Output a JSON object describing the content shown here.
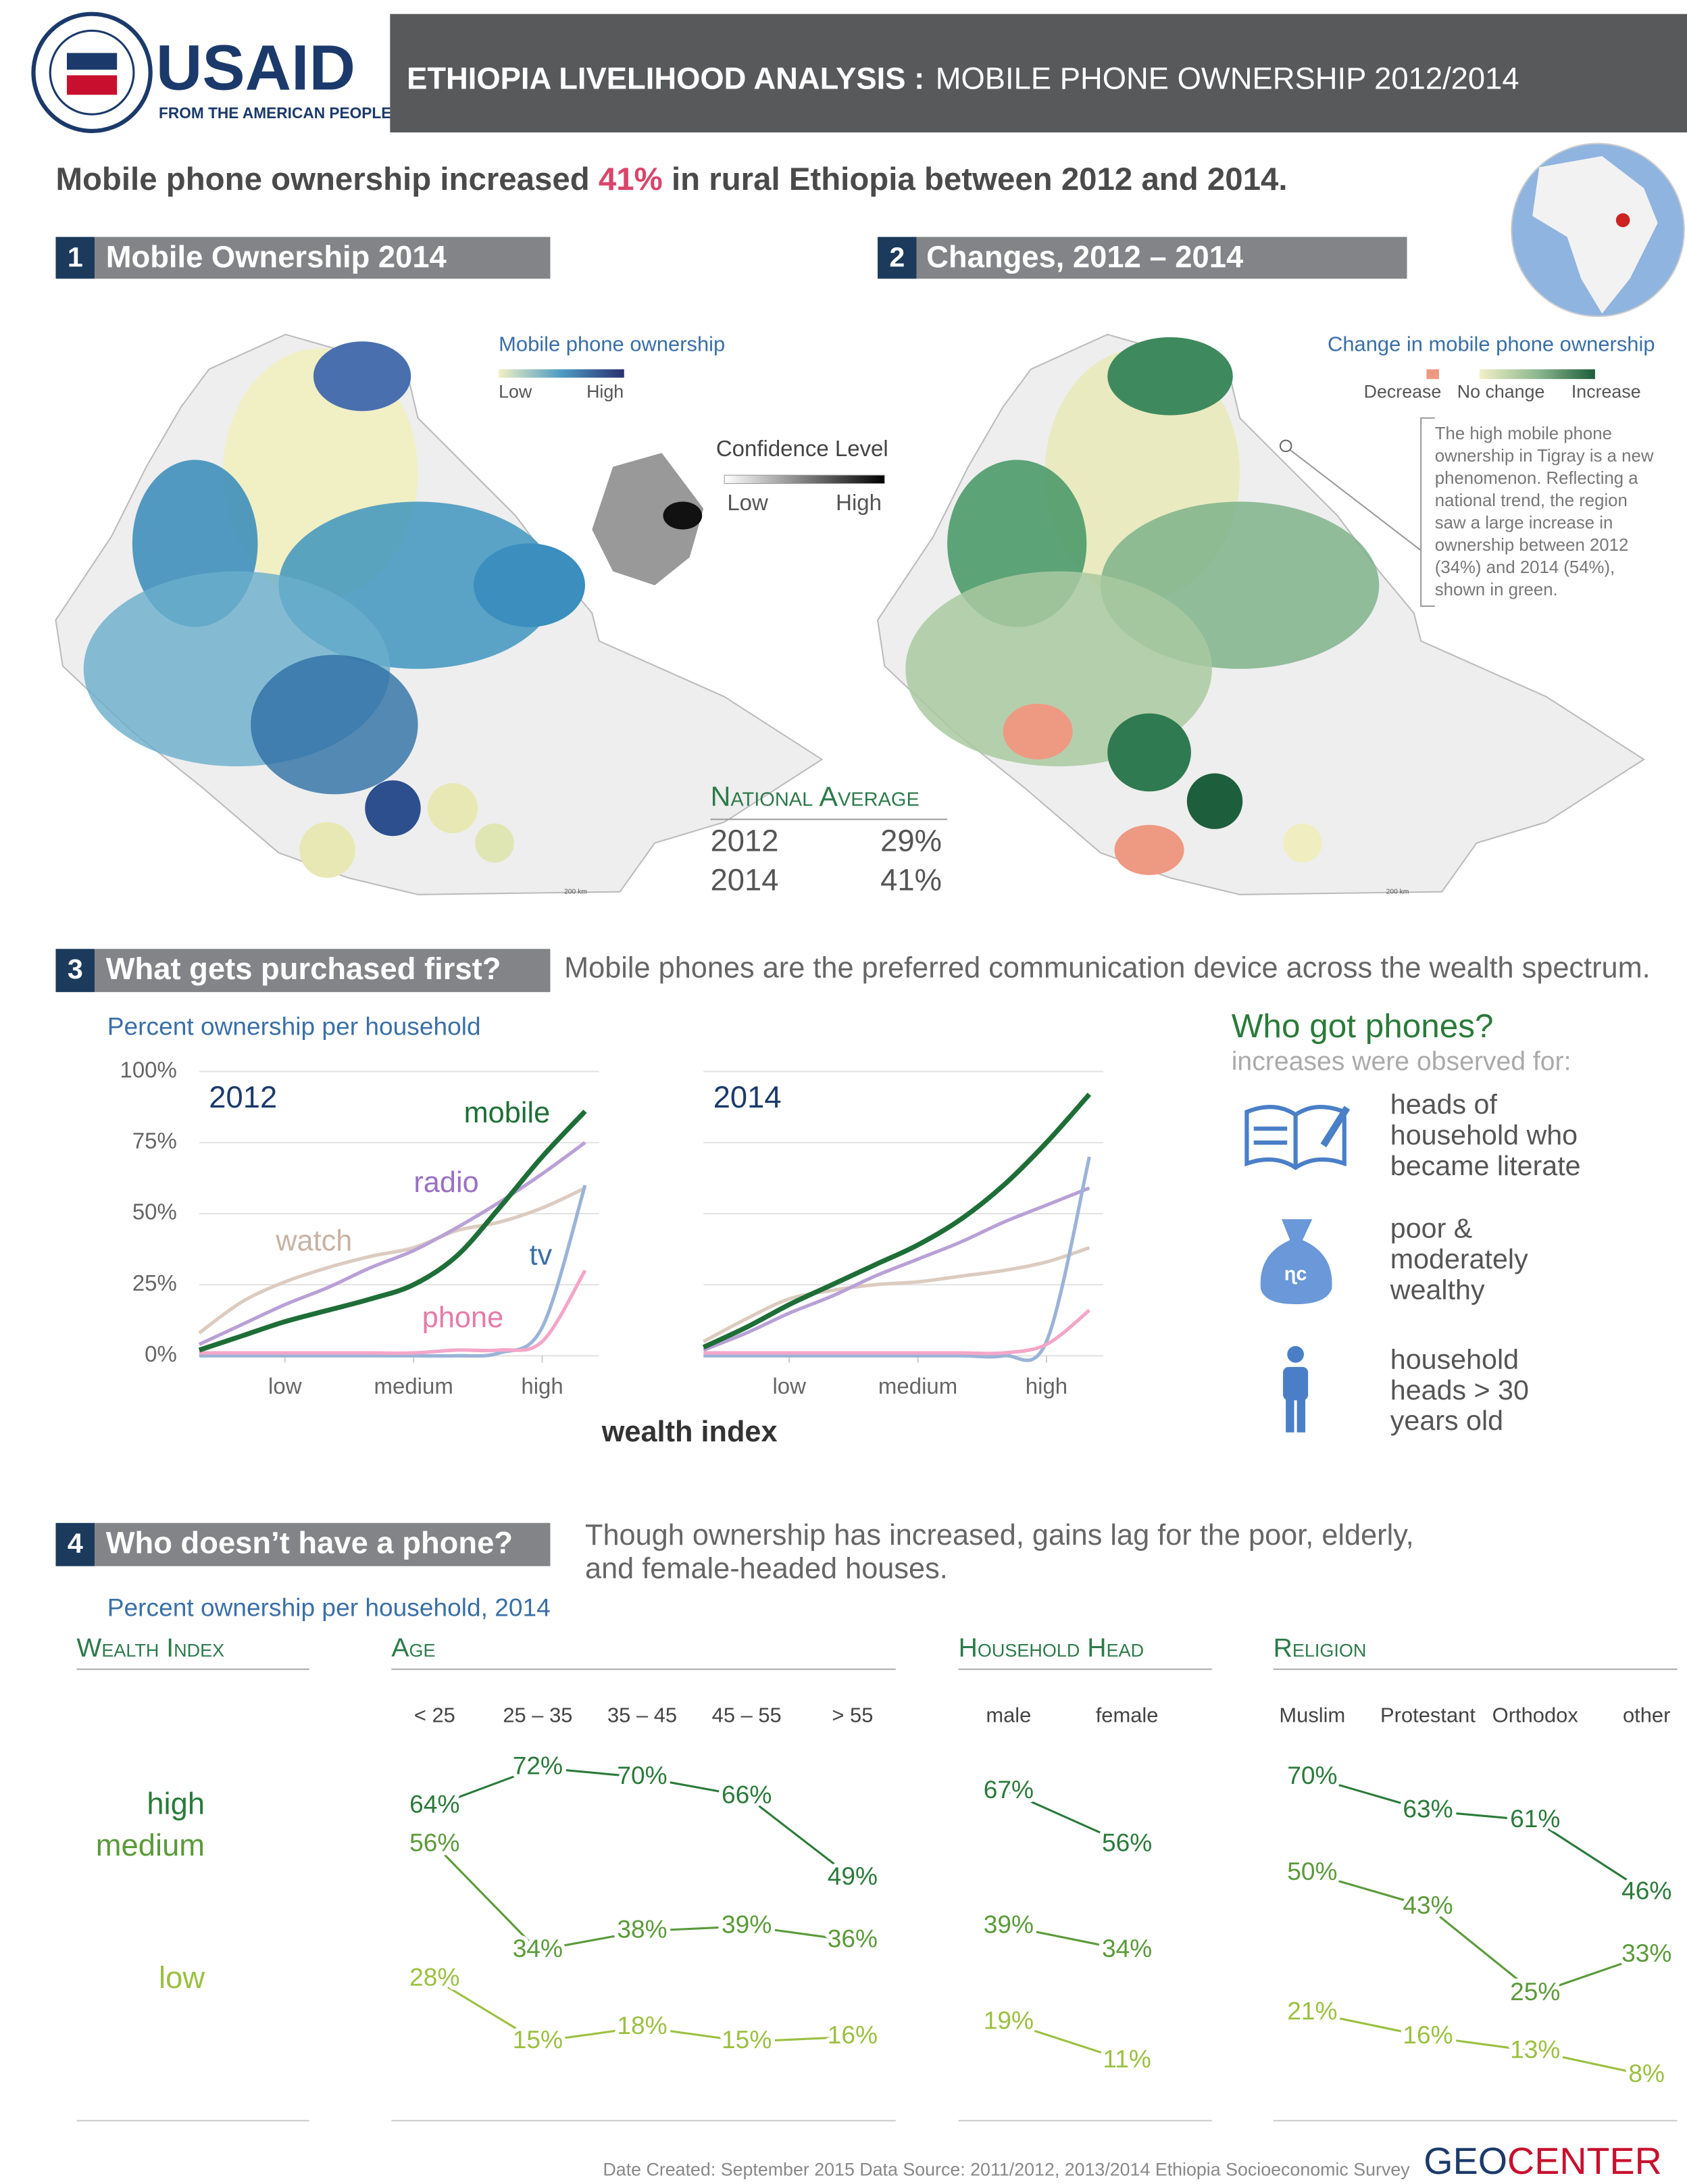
{
  "header": {
    "agency": "USAID",
    "tagline": "FROM THE AMERICAN PEOPLE",
    "title_bold": "ETHIOPIA LIVELIHOOD ANALYSIS :",
    "title_light": "MOBILE PHONE OWNERSHIP 2012/2014"
  },
  "headline": {
    "before": "Mobile phone ownership increased ",
    "highlight": "41%",
    "after": " in rural Ethiopia between 2012 and 2014."
  },
  "section1": {
    "number": "1",
    "title": "Mobile Ownership 2014",
    "legend_title": "Mobile phone ownership",
    "legend_low": "Low",
    "legend_high": "High",
    "confidence_title": "Confidence Level",
    "confidence_low": "Low",
    "confidence_high": "High",
    "scale": "200 km"
  },
  "national_average": {
    "title": "National Average",
    "rows": [
      [
        "2012",
        "29%"
      ],
      [
        "2014",
        "41%"
      ]
    ]
  },
  "section2": {
    "number": "2",
    "title": "Changes, 2012 – 2014",
    "legend_title": "Change in mobile phone ownership",
    "legend_decrease": "Decrease",
    "legend_no_change": "No change",
    "legend_increase": "Increase",
    "scale": "200 km",
    "note": [
      "The high mobile phone",
      "ownership in Tigray is a new",
      "phenomenon. Reflecting a",
      "national trend, the region",
      "saw a large increase in",
      "ownership between 2012",
      "(34%) and 2014 (54%),",
      "shown in green."
    ]
  },
  "section3": {
    "number": "3",
    "title": "What gets purchased first?",
    "subtitle": "Mobile phones are the preferred communication device across the wealth spectrum.",
    "y_axis_title": "Percent ownership per household",
    "x_axis_title": "wealth index"
  },
  "who_got_phones": {
    "title": "Who got phones?",
    "subtitle": "increases were observed for:",
    "items": [
      [
        "heads of",
        "household who",
        "became literate"
      ],
      [
        "poor &",
        "moderately",
        "wealthy"
      ],
      [
        "household",
        "heads > 30",
        "years old"
      ]
    ]
  },
  "section4": {
    "number": "4",
    "title": "Who doesn’t have a phone?",
    "subtitle": [
      "Though ownership has increased, gains lag for the poor, elderly,",
      "and female-headed houses."
    ],
    "axis_title": "Percent ownership per household, 2014"
  },
  "footer": {
    "note": "Date Created: September 2015  Data Source: 2011/2012, 2013/2014 Ethiopia Socioeconomic Survey",
    "logo_geo": "GEO",
    "logo_center": "CENTER"
  },
  "chart_data": [
    {
      "type": "line",
      "title": "2012",
      "x": [
        0,
        1,
        2,
        3,
        4,
        5,
        6,
        7,
        8,
        9
      ],
      "xlim": [
        0,
        9
      ],
      "xticks": [
        {
          "value": 2,
          "label": "low"
        },
        {
          "value": 5,
          "label": "medium"
        },
        {
          "value": 8,
          "label": "high"
        }
      ],
      "ylim": [
        0,
        100
      ],
      "yticks": [
        {
          "value": 0,
          "label": "0%"
        },
        {
          "value": 25,
          "label": "25%"
        },
        {
          "value": 50,
          "label": "50%"
        },
        {
          "value": 75,
          "label": "75%"
        },
        {
          "value": 100,
          "label": "100%"
        }
      ],
      "grid": true,
      "series": [
        {
          "name": "watch",
          "color": "#dccbbf",
          "values": [
            8,
            19,
            26,
            31,
            35,
            38,
            44,
            47,
            52,
            59
          ]
        },
        {
          "name": "radio",
          "color": "#b9a0d6",
          "values": [
            4,
            11,
            18,
            24,
            31,
            37,
            45,
            54,
            64,
            75
          ]
        },
        {
          "name": "tv",
          "color": "#9ab3d8",
          "values": [
            0,
            0,
            0,
            0,
            0,
            0,
            0,
            1,
            10,
            60
          ]
        },
        {
          "name": "phone",
          "color": "#f4a6c8",
          "values": [
            1,
            1,
            1,
            1,
            1,
            1,
            2,
            2,
            5,
            30
          ]
        },
        {
          "name": "mobile",
          "color": "#1e6e37",
          "values": [
            2,
            7,
            12,
            16,
            20,
            25,
            35,
            52,
            70,
            86
          ]
        }
      ]
    },
    {
      "type": "line",
      "title": "2014",
      "x": [
        0,
        1,
        2,
        3,
        4,
        5,
        6,
        7,
        8,
        9
      ],
      "xlim": [
        0,
        9
      ],
      "xticks": [
        {
          "value": 2,
          "label": "low"
        },
        {
          "value": 5,
          "label": "medium"
        },
        {
          "value": 8,
          "label": "high"
        }
      ],
      "ylim": [
        0,
        100
      ],
      "yticks": [
        0,
        25,
        50,
        75,
        100
      ],
      "grid": true,
      "series": [
        {
          "color": "#dccbbf",
          "values": [
            5,
            13,
            20,
            23,
            25,
            26,
            28,
            30,
            33,
            38
          ]
        },
        {
          "color": "#b9a0d6",
          "values": [
            2,
            8,
            15,
            21,
            28,
            34,
            40,
            47,
            53,
            59
          ]
        },
        {
          "color": "#9ab3d8",
          "values": [
            0,
            0,
            0,
            0,
            0,
            0,
            0,
            0,
            5,
            70
          ]
        },
        {
          "color": "#f4a6c8",
          "values": [
            1,
            1,
            1,
            1,
            1,
            1,
            1,
            1,
            4,
            16
          ]
        },
        {
          "color": "#1e6e37",
          "values": [
            3,
            10,
            18,
            25,
            32,
            39,
            48,
            60,
            75,
            92
          ]
        }
      ]
    },
    {
      "type": "slope",
      "title": "Age",
      "legend_title": "Wealth Index",
      "categories": [
        "< 25",
        "25 – 35",
        "35 – 45",
        "45 – 55",
        "> 55"
      ],
      "series": [
        {
          "name": "high",
          "color": "#2a7a3a",
          "values": [
            64,
            72,
            70,
            66,
            49
          ],
          "value_labels": [
            "64%",
            "72%",
            "70%",
            "66%",
            "49%"
          ]
        },
        {
          "name": "medium",
          "color": "#5a9a3a",
          "values": [
            56,
            34,
            38,
            39,
            36
          ],
          "value_labels": [
            "56%",
            "34%",
            "38%",
            "39%",
            "36%"
          ]
        },
        {
          "name": "low",
          "color": "#9ac040",
          "values": [
            28,
            15,
            18,
            15,
            16
          ],
          "value_labels": [
            "28%",
            "15%",
            "18%",
            "15%",
            "16%"
          ]
        }
      ]
    },
    {
      "type": "slope",
      "title": "Household Head",
      "categories": [
        "male",
        "female"
      ],
      "series": [
        {
          "color": "#2a7a3a",
          "values": [
            67,
            56
          ],
          "value_labels": [
            "67%",
            "56%"
          ]
        },
        {
          "color": "#5a9a3a",
          "values": [
            39,
            34
          ],
          "value_labels": [
            "39%",
            "34%"
          ]
        },
        {
          "color": "#9ac040",
          "values": [
            19,
            11
          ],
          "value_labels": [
            "19%",
            "11%"
          ]
        }
      ]
    },
    {
      "type": "slope",
      "title": "Religion",
      "categories": [
        "Muslim",
        "Protestant",
        "Orthodox",
        "other"
      ],
      "series": [
        {
          "color": "#2a7a3a",
          "values": [
            70,
            63,
            61,
            46
          ],
          "value_labels": [
            "70%",
            "63%",
            "61%",
            "46%"
          ]
        },
        {
          "color": "#5a9a3a",
          "values": [
            50,
            43,
            25,
            33
          ],
          "value_labels": [
            "50%",
            "43%",
            "25%",
            "33%"
          ]
        },
        {
          "color": "#9ac040",
          "values": [
            21,
            16,
            13,
            8
          ],
          "value_labels": [
            "21%",
            "16%",
            "13%",
            "8%"
          ]
        }
      ]
    }
  ]
}
